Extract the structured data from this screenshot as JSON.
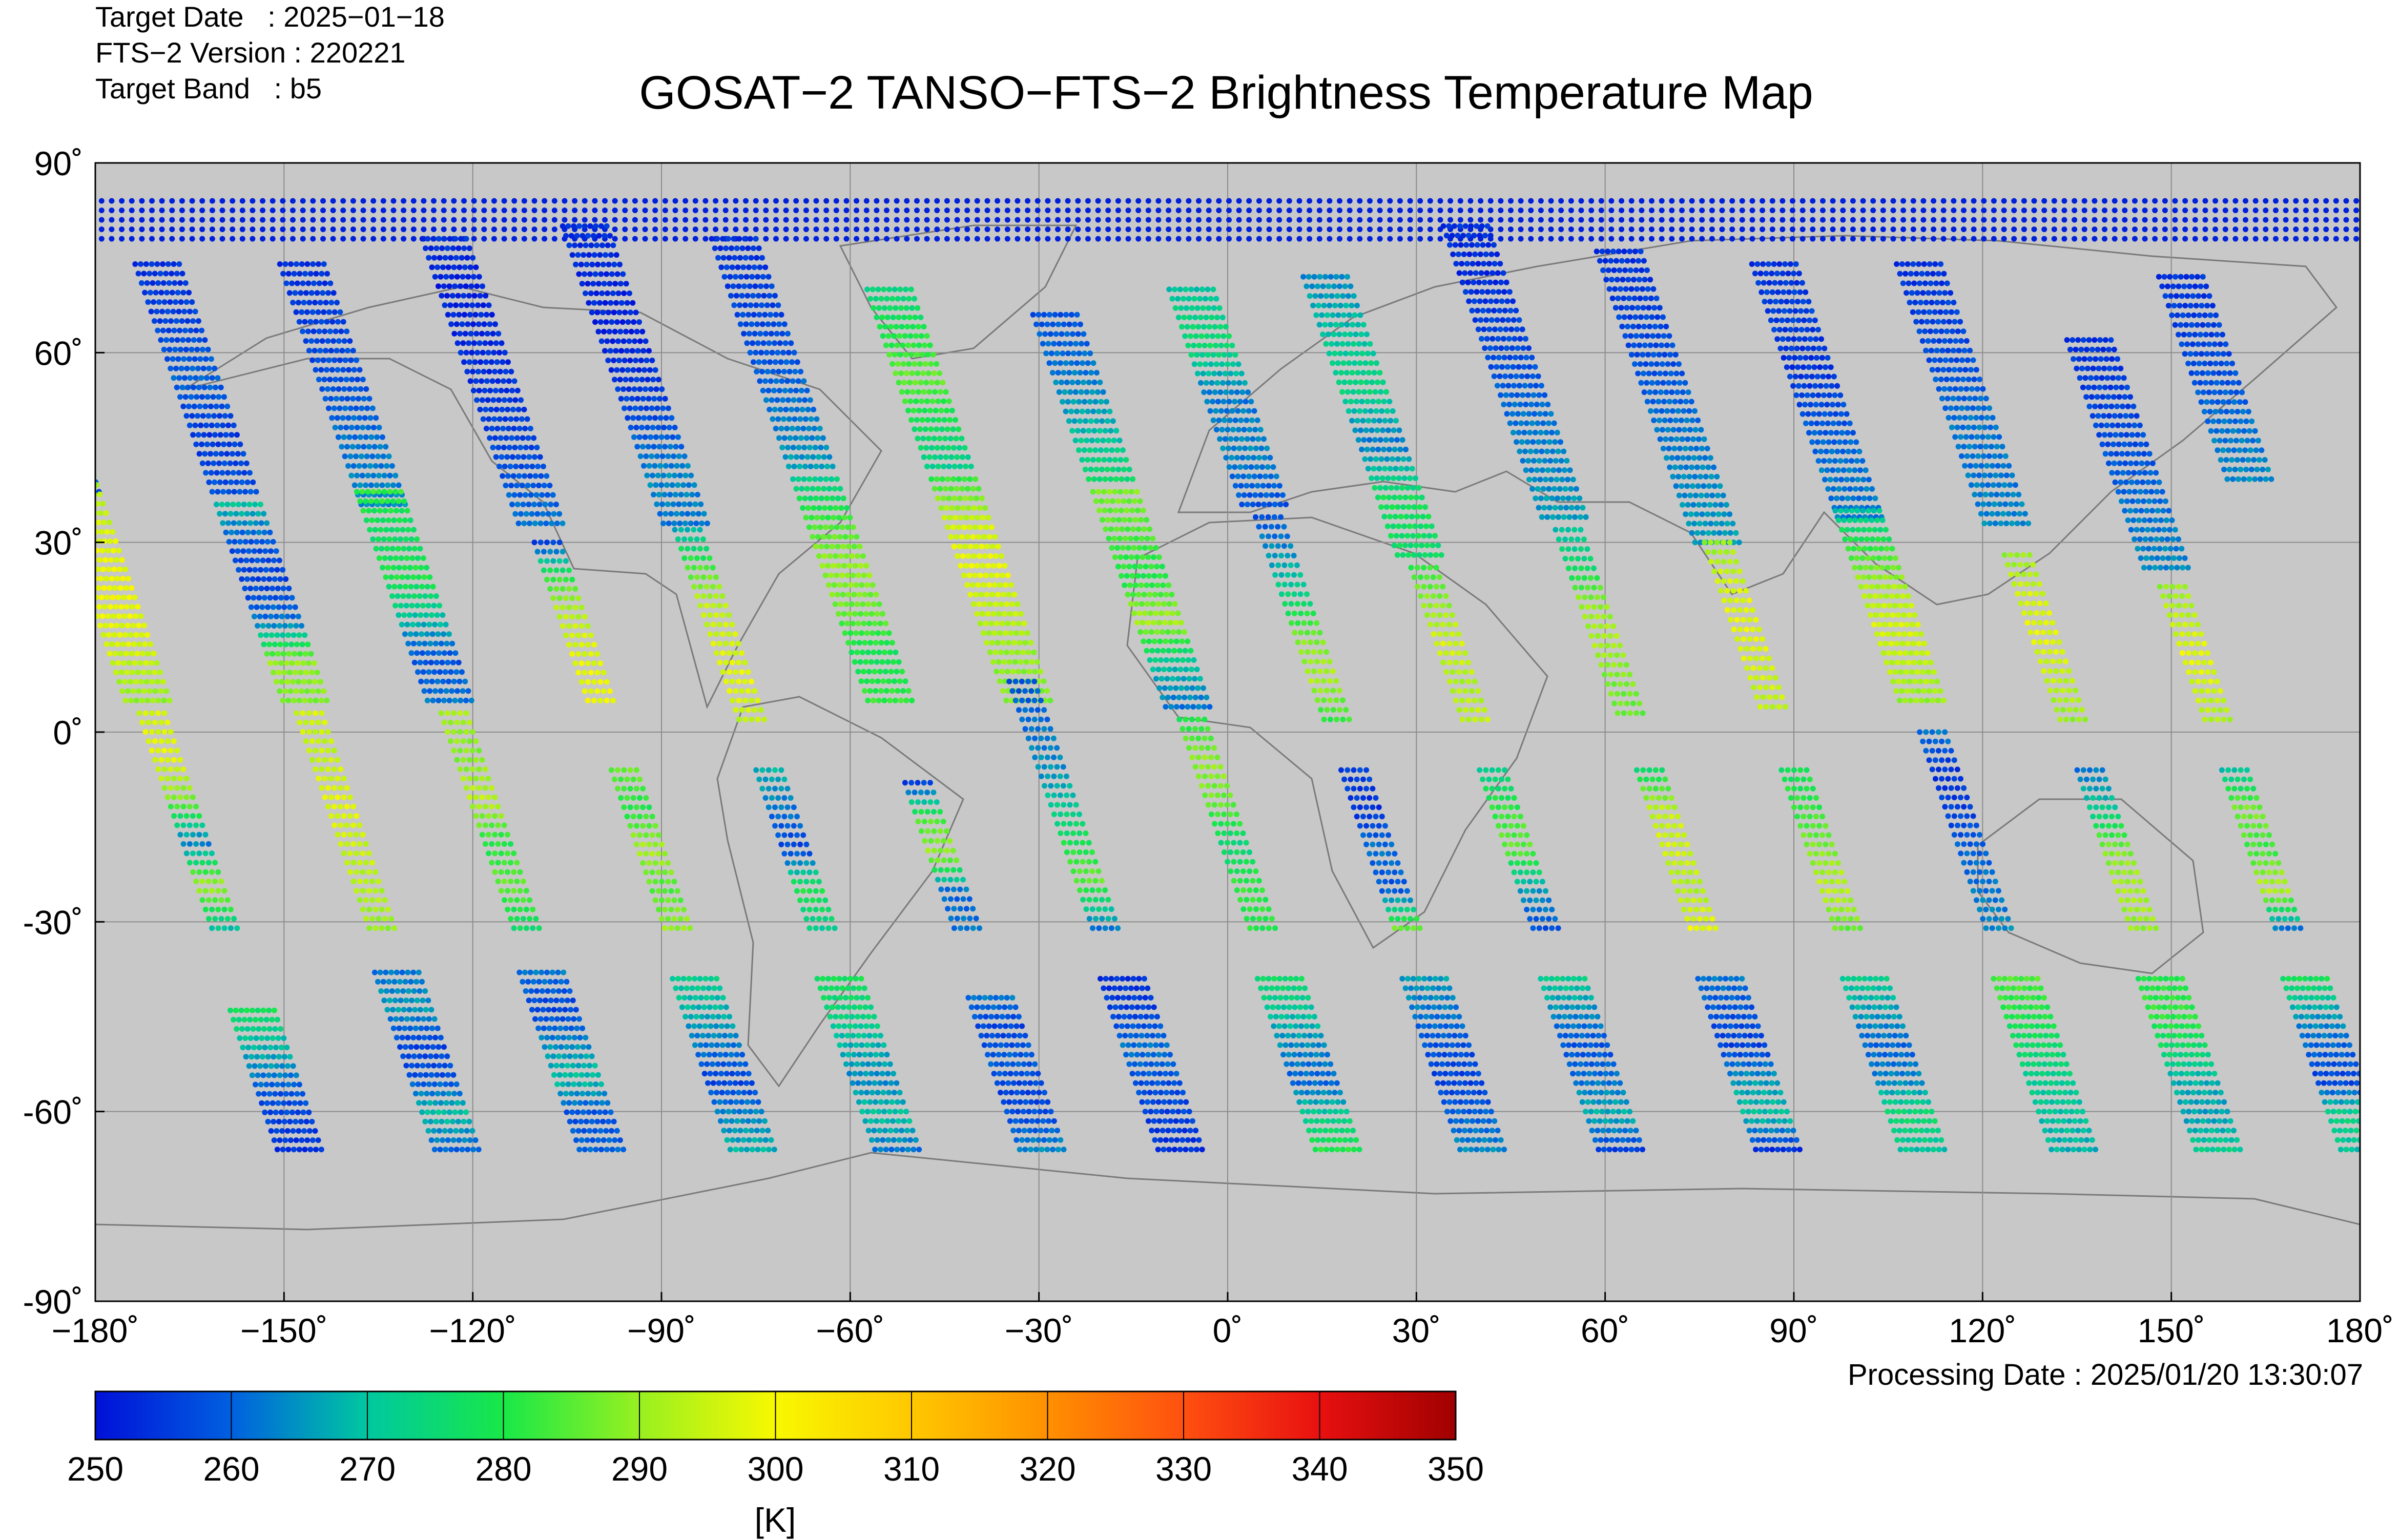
{
  "header": {
    "target_date_label": "Target Date",
    "target_date_value": ": 2025−01−18",
    "version_label": "FTS−2 Version",
    "version_value": ": 220221",
    "band_label": "Target Band",
    "band_value": ": b5"
  },
  "footer": {
    "processing_date": "Processing Date : 2025/01/20 13:30:07"
  },
  "chart_data": {
    "type": "scatter",
    "title": "GOSAT−2 TANSO−FTS−2 Brightness Temperature Map",
    "xlabel": "",
    "ylabel": "",
    "xlim": [
      -180,
      180
    ],
    "ylim": [
      -90,
      90
    ],
    "x_ticks": [
      -180,
      -150,
      -120,
      -90,
      -60,
      -30,
      0,
      30,
      60,
      90,
      120,
      150,
      180
    ],
    "x_tick_labels": [
      "−180˚",
      "−150˚",
      "−120˚",
      "−90˚",
      "−60˚",
      "−30˚",
      "0˚",
      "30˚",
      "60˚",
      "90˚",
      "120˚",
      "150˚",
      "180˚"
    ],
    "y_ticks": [
      -90,
      -60,
      -30,
      0,
      30,
      60,
      90
    ],
    "y_tick_labels": [
      "-90˚",
      "-60˚",
      "-30˚",
      "0˚",
      "30˚",
      "60˚",
      "90˚"
    ],
    "grid": true,
    "background_color": "#c8c8c8",
    "colorbar": {
      "label": "[K]",
      "min": 250,
      "max": 350,
      "ticks": [
        250,
        260,
        270,
        280,
        290,
        300,
        310,
        320,
        330,
        340,
        350
      ],
      "tick_labels": [
        "250",
        "260",
        "270",
        "280",
        "290",
        "300",
        "310",
        "320",
        "330",
        "340",
        "350"
      ],
      "colors": [
        "#0010d8",
        "#0060e0",
        "#00c8a0",
        "#18e848",
        "#98f020",
        "#f8f800",
        "#ffc800",
        "#ff9000",
        "#ff5010",
        "#e81010",
        "#a00000"
      ]
    },
    "polar_band": {
      "lat_range": [
        78,
        84
      ],
      "value_k": 252
    },
    "swaths": [
      {
        "lon_equator": -170,
        "segments": [
          {
            "lat": [
              70,
              38
            ],
            "values": [
              256,
              254,
              258,
              262,
              258
            ]
          },
          {
            "lat": [
              45,
              5
            ],
            "values": [
              285,
              293,
              298,
              299,
              296,
              290
            ]
          },
          {
            "lat": [
              3,
              -31
            ],
            "values": [
              296,
              298,
              288,
              262,
              292,
              270
            ]
          },
          {
            "lat": [
              -44,
              -66
            ],
            "values": [
              278,
              270,
              265,
              258,
              256,
              254
            ]
          }
        ]
      },
      {
        "lon_equator": -145,
        "segments": [
          {
            "lat": [
              74,
              38
            ],
            "values": [
              254,
              256,
              260,
              255,
              258
            ]
          },
          {
            "lat": [
              36,
              5
            ],
            "values": [
              270,
              258,
              256,
              262,
              290,
              288
            ]
          },
          {
            "lat": [
              3,
              -31
            ],
            "values": [
              296,
              294,
              298,
              295,
              293,
              290
            ]
          },
          {
            "lat": [
              -38,
              -66
            ],
            "values": [
              262,
              266,
              256,
              258,
              270,
              260
            ]
          }
        ]
      },
      {
        "lon_equator": -122,
        "segments": [
          {
            "lat": [
              74,
              36
            ],
            "values": [
              254,
              256,
              258,
              262,
              264
            ]
          },
          {
            "lat": [
              38,
              5
            ],
            "values": [
              282,
              276,
              280,
              270,
              258,
              262
            ]
          },
          {
            "lat": [
              3,
              -31
            ],
            "values": [
              292,
              288,
              294,
              280,
              286,
              276
            ]
          },
          {
            "lat": [
              -38,
              -66
            ],
            "values": [
              262,
              256,
              264,
              270,
              258,
              260
            ]
          }
        ]
      },
      {
        "lon_equator": -98,
        "segments": [
          {
            "lat": [
              78,
              33
            ],
            "values": [
              254,
              252,
              253,
              254,
              256,
              258,
              262
            ]
          },
          {
            "lat": [
              30,
              5
            ],
            "values": [
              256,
              280,
              292,
              296,
              298,
              299
            ]
          },
          {
            "lat": [
              -6,
              -31
            ],
            "values": [
              286,
              280,
              292,
              284,
              290
            ]
          },
          {
            "lat": [
              -39,
              -66
            ],
            "values": [
              272,
              268,
              262,
              256,
              264,
              268
            ]
          }
        ]
      },
      {
        "lon_equator": -75,
        "segments": [
          {
            "lat": [
              80,
              33
            ],
            "values": [
              254,
              253,
              252,
              254,
              258,
              264,
              262
            ]
          },
          {
            "lat": [
              32,
              2
            ],
            "values": [
              268,
              284,
              294,
              296,
              298,
              294
            ]
          },
          {
            "lat": [
              -6,
              -31
            ],
            "values": [
              268,
              262,
              256,
              280,
              272
            ]
          },
          {
            "lat": [
              -39,
              -66
            ],
            "values": [
              278,
              274,
              268,
              264,
              270,
              262
            ]
          }
        ]
      },
      {
        "lon_equator": -52,
        "segments": [
          {
            "lat": [
              78,
              42
            ],
            "values": [
              254,
              256,
              258,
              262,
              266
            ]
          },
          {
            "lat": [
              40,
              5
            ],
            "values": [
              272,
              284,
              290,
              286,
              278,
              282
            ]
          },
          {
            "lat": [
              -8,
              -31
            ],
            "values": [
              256,
              284,
              290,
              260,
              262
            ]
          },
          {
            "lat": [
              -42,
              -66
            ],
            "values": [
              262,
              256,
              260,
              256,
              258,
              264
            ]
          }
        ]
      },
      {
        "lon_equator": -30,
        "segments": [
          {
            "lat": [
              70,
              42
            ],
            "values": [
              274,
              280,
              286,
              278,
              272
            ]
          },
          {
            "lat": [
              40,
              5
            ],
            "values": [
              282,
              296,
              298,
              294,
              290,
              288
            ]
          },
          {
            "lat": [
              8,
              -31
            ],
            "values": [
              258,
              262,
              266,
              276,
              286,
              262
            ]
          },
          {
            "lat": [
              -39,
              -66
            ],
            "values": [
              254,
              256,
              262,
              258,
              256,
              254
            ]
          }
        ]
      },
      {
        "lon_equator": -5,
        "segments": [
          {
            "lat": [
              66,
              40
            ],
            "values": [
              258,
              262,
              268,
              276
            ]
          },
          {
            "lat": [
              38,
              4
            ],
            "values": [
              288,
              284,
              280,
              292,
              270,
              262
            ]
          },
          {
            "lat": [
              2,
              -31
            ],
            "values": [
              280,
              290,
              286,
              274,
              282,
              280
            ]
          },
          {
            "lat": [
              -39,
              -66
            ],
            "values": [
              276,
              270,
              264,
              260,
              272,
              280
            ]
          }
        ]
      },
      {
        "lon_equator": 18,
        "segments": [
          {
            "lat": [
              70,
              36
            ],
            "values": [
              270,
              276,
              262,
              264,
              258
            ]
          },
          {
            "lat": [
              34,
              2
            ],
            "values": [
              258,
              266,
              274,
              288,
              292,
              282
            ]
          },
          {
            "lat": [
              -6,
              -31
            ],
            "values": [
              256,
              254,
              262,
              258,
              286
            ]
          },
          {
            "lat": [
              -39,
              -66
            ],
            "values": [
              266,
              262,
              258,
              256,
              260,
              264
            ]
          }
        ]
      },
      {
        "lon_equator": 40,
        "segments": [
          {
            "lat": [
              72,
              28
            ],
            "values": [
              264,
              270,
              274,
              262,
              278,
              276
            ]
          },
          {
            "lat": [
              26,
              2
            ],
            "values": [
              282,
              290,
              296,
              292,
              294
            ]
          },
          {
            "lat": [
              -6,
              -31
            ],
            "values": [
              272,
              282,
              286,
              266,
              258
            ]
          },
          {
            "lat": [
              -39,
              -66
            ],
            "values": [
              272,
              264,
              258,
              262,
              268,
              256
            ]
          }
        ]
      },
      {
        "lon_equator": 65,
        "segments": [
          {
            "lat": [
              80,
              34
            ],
            "values": [
              254,
              253,
              256,
              258,
              262,
              264,
              266
            ]
          },
          {
            "lat": [
              32,
              3
            ],
            "values": [
              270,
              276,
              290,
              292,
              288,
              286
            ]
          },
          {
            "lat": [
              -6,
              -31
            ],
            "values": [
              276,
              294,
              296,
              292,
              298
            ]
          },
          {
            "lat": [
              -39,
              -66
            ],
            "values": [
              262,
              258,
              256,
              266,
              270,
              254
            ]
          }
        ]
      },
      {
        "lon_equator": 88,
        "segments": [
          {
            "lat": [
              76,
              30
            ],
            "values": [
              254,
              256,
              258,
              262,
              264,
              266
            ]
          },
          {
            "lat": [
              30,
              4
            ],
            "values": [
              290,
              296,
              298,
              296,
              294
            ]
          },
          {
            "lat": [
              -6,
              -31
            ],
            "values": [
              278,
              282,
              288,
              294,
              286
            ]
          },
          {
            "lat": [
              -39,
              -66
            ],
            "values": [
              272,
              266,
              260,
              264,
              276,
              270
            ]
          }
        ]
      },
      {
        "lon_equator": 112,
        "segments": [
          {
            "lat": [
              74,
              34
            ],
            "values": [
              254,
              256,
              254,
              258,
              262,
              262
            ]
          },
          {
            "lat": [
              35,
              5
            ],
            "values": [
              270,
              282,
              292,
              296,
              294,
              290
            ]
          },
          {
            "lat": [
              0,
              -31
            ],
            "values": [
              262,
              254,
              256,
              260,
              262,
              264
            ]
          },
          {
            "lat": [
              -39,
              -66
            ],
            "values": [
              284,
              280,
              276,
              272,
              270,
              268
            ]
          }
        ]
      },
      {
        "lon_equator": 135,
        "segments": [
          {
            "lat": [
              74,
              33
            ],
            "values": [
              254,
              256,
              258,
              262,
              262,
              264
            ]
          },
          {
            "lat": [
              28,
              2
            ],
            "values": [
              290,
              296,
              298,
              294,
              290
            ]
          },
          {
            "lat": [
              -6,
              -31
            ],
            "values": [
              262,
              272,
              288,
              292,
              290
            ]
          },
          {
            "lat": [
              -39,
              -66
            ],
            "values": [
              280,
              282,
              276,
              268,
              266,
              272
            ]
          }
        ]
      },
      {
        "lon_equator": 158,
        "segments": [
          {
            "lat": [
              62,
              26
            ],
            "values": [
              254,
              256,
              258,
              262,
              264
            ]
          },
          {
            "lat": [
              23,
              2
            ],
            "values": [
              290,
              294,
              298,
              296,
              292
            ]
          },
          {
            "lat": [
              -6,
              -31
            ],
            "values": [
              270,
              288,
              282,
              294,
              262
            ]
          },
          {
            "lat": [
              -39,
              -66
            ],
            "values": [
              278,
              266,
              260,
              256,
              274,
              270
            ]
          }
        ]
      },
      {
        "lon_equator": 176,
        "segments": [
          {
            "lat": [
              72,
              40
            ],
            "values": [
              254,
              256,
              258,
              262,
              264
            ]
          },
          {
            "lat": [
              -36,
              -60
            ],
            "values": [
              290,
              282,
              276,
              270,
              268
            ]
          }
        ]
      }
    ]
  }
}
